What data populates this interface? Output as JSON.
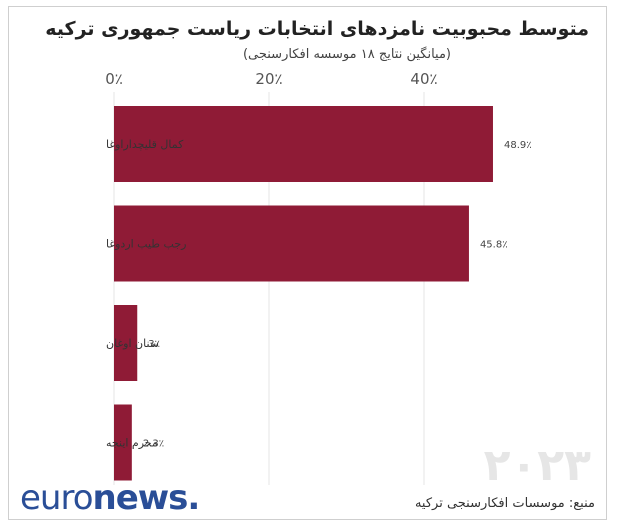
{
  "chart_data": {
    "type": "bar",
    "orientation": "horizontal",
    "title": "متوسط محبوبیت نامزدهای انتخابات ریاست جمهوری ترکیه",
    "subtitle": "(میانگین نتایج ۱۸ موسسه افکارسنجی)",
    "categories": [
      "کمال قلیچداراوغا",
      "رجب طیب اردوغا",
      "سنان اوغان",
      "محرم اینجه"
    ],
    "values": [
      48.9,
      45.8,
      3,
      2.3
    ],
    "value_labels": [
      "48.9٪",
      "45.8٪",
      "3٪",
      "2.3٪"
    ],
    "ticks": [
      0,
      20,
      40
    ],
    "tick_labels": [
      "0٪",
      "20٪",
      "40٪"
    ],
    "xlim": [
      0,
      60
    ],
    "grid": true,
    "bar_color": "#8f1b36"
  },
  "source": "منبع: موسسات افکارسنجی ترکیه",
  "watermark": "۲۰۲۳",
  "logo": {
    "part1": "euro",
    "part2": "news",
    "part3": "."
  }
}
